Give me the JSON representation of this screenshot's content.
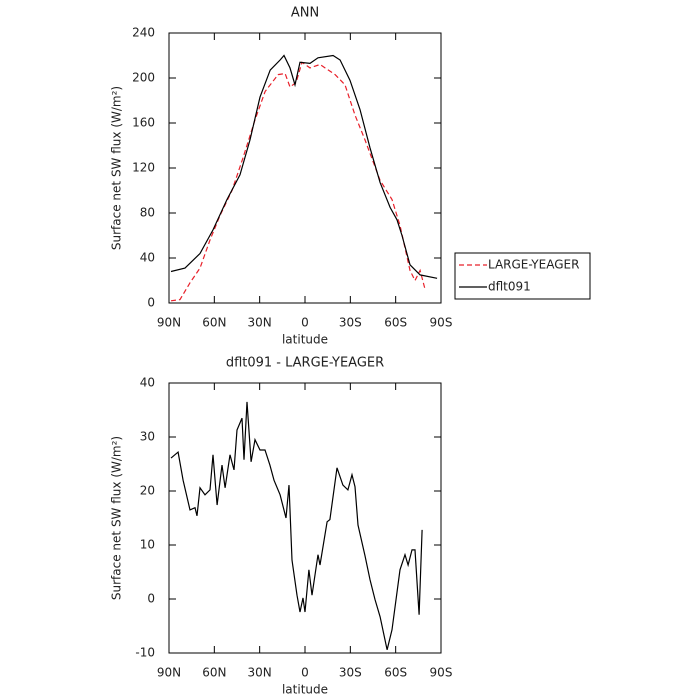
{
  "chart_data": [
    {
      "type": "line",
      "title": "ANN",
      "xlabel": "latitude",
      "ylabel": "Surface net SW flux (W/m²)",
      "xlim": [
        90,
        -90
      ],
      "xticks": [
        {
          "value": 90,
          "label": "90N"
        },
        {
          "value": 60,
          "label": "60N"
        },
        {
          "value": 30,
          "label": "30N"
        },
        0,
        {
          "value": -30,
          "label": "30S"
        },
        {
          "value": -60,
          "label": "60S"
        },
        {
          "value": -90,
          "label": "90S"
        }
      ],
      "ylim": [
        0,
        240
      ],
      "yticks": [
        0,
        40,
        80,
        120,
        160,
        200,
        240
      ],
      "legend": "right",
      "series": [
        {
          "name": "LARGE-YEAGER",
          "color": "#e8202a",
          "dash": true,
          "x": [
            88.7,
            82.7,
            76.1,
            69.5,
            62.9,
            56.2,
            48.3,
            41,
            33,
            26.4,
            17.8,
            13.2,
            9.9,
            5.9,
            2,
            -3.3,
            -9.9,
            -19.9,
            -26.5,
            -33.1,
            -39.7,
            -49.7,
            -57.6,
            -62.9,
            -69.5,
            -72.8,
            -76.2,
            -79.5
          ],
          "values": [
            2,
            3,
            18,
            31,
            56,
            78,
            100,
            129,
            163,
            188,
            203,
            204,
            192,
            196,
            214,
            209,
            212,
            203,
            194,
            167,
            145,
            109,
            92,
            69,
            29,
            20,
            29,
            12
          ]
        },
        {
          "name": "dflt091",
          "color": "#000000",
          "dash": false,
          "x": [
            88.7,
            79.4,
            69.5,
            60.9,
            51.6,
            43,
            36.4,
            29.8,
            23,
            16.5,
            13.9,
            9.9,
            6.6,
            3.3,
            -3.3,
            -8.6,
            -18.6,
            -23.2,
            -29.8,
            -36.4,
            -43,
            -49.7,
            -56.3,
            -60.9,
            -64.2,
            -69.5,
            -76.2,
            -87.4
          ],
          "values": [
            28,
            31,
            44,
            65,
            92,
            114,
            145,
            183,
            207,
            216,
            220,
            209,
            194,
            214,
            213,
            218,
            220,
            216,
            198,
            172,
            138,
            107,
            85,
            74,
            60,
            34,
            25,
            22
          ]
        }
      ]
    },
    {
      "type": "line",
      "title": "dflt091 - LARGE-YEAGER",
      "xlabel": "latitude",
      "ylabel": "Surface net SW flux (W/m²)",
      "xlim": [
        90,
        -90
      ],
      "xticks": [
        {
          "value": 90,
          "label": "90N"
        },
        {
          "value": 60,
          "label": "60N"
        },
        {
          "value": 30,
          "label": "30N"
        },
        0,
        {
          "value": -30,
          "label": "30S"
        },
        {
          "value": -60,
          "label": "60S"
        },
        {
          "value": -90,
          "label": "90S"
        }
      ],
      "ylim": [
        -10,
        40
      ],
      "yticks": [
        -10,
        0,
        10,
        20,
        30,
        40
      ],
      "series": [
        {
          "color": "#000000",
          "dash": false,
          "x": [
            88.7,
            84.0,
            80.7,
            76.1,
            72.8,
            71.5,
            69.5,
            66.2,
            62.9,
            60.9,
            58.2,
            54.9,
            52.9,
            49.6,
            47.0,
            45.0,
            41.7,
            40.4,
            38.4,
            35.7,
            33.1,
            29.8,
            26.5,
            23.2,
            20.5,
            16.5,
            12.6,
            10.6,
            8.6,
            5.3,
            3.3,
            1.3,
            0.0,
            -2.6,
            -4.6,
            -8.6,
            -9.9,
            -14.6,
            -16.5,
            -21.2,
            -25.1,
            -28.4,
            -31.1,
            -33.1,
            -35.1,
            -39.7,
            -43.0,
            -46.3,
            -49.7,
            -54.3,
            -57.6,
            -62.9,
            -66.2,
            -68.2,
            -70.8,
            -72.8,
            -75.5,
            -77.5
          ],
          "values": [
            26.1,
            27.2,
            22,
            16.5,
            16.9,
            15.4,
            20.6,
            19.3,
            20.2,
            26.7,
            17.4,
            24.8,
            20.6,
            26.7,
            23.9,
            31.3,
            33.5,
            25.8,
            36.5,
            25.4,
            29.5,
            27.6,
            27.6,
            24.8,
            22,
            19.3,
            15,
            21.1,
            7.2,
            0.7,
            -2.4,
            0.2,
            -2.4,
            5.4,
            0.7,
            8.2,
            6.3,
            14.3,
            14.7,
            24.3,
            21.1,
            20.2,
            23,
            20.8,
            13.7,
            8,
            3.6,
            -0.1,
            -3.3,
            -9.4,
            -5.7,
            5.4,
            8.2,
            6.3,
            9.1,
            9.1,
            -2.9,
            12.8
          ]
        }
      ]
    }
  ]
}
